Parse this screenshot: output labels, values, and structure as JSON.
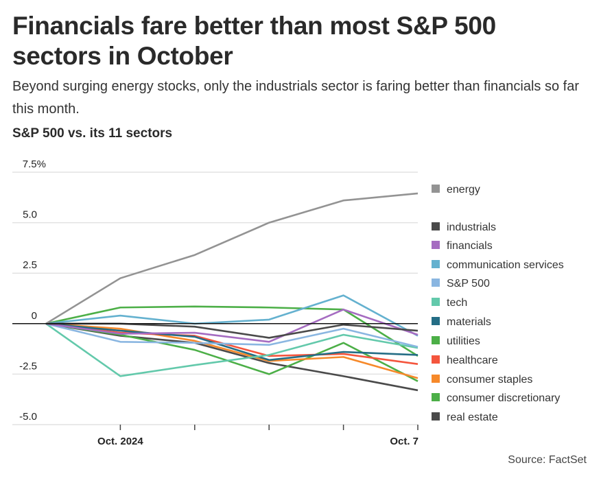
{
  "header": {
    "title": "Financials fare better than most S&P 500 sectors in October",
    "subtitle": "Beyond surging energy stocks, only the industrials sector is faring better than financials so far this month.",
    "chart_title": "S&P 500 vs. its 11 sectors"
  },
  "source": "Source: FactSet",
  "chart_data": {
    "type": "line",
    "title": "S&P 500 vs. its 11 sectors",
    "xlabel": "",
    "ylabel": "",
    "ylim": [
      -5.0,
      7.5
    ],
    "yticks": [
      {
        "value": 7.5,
        "label": "7.5%"
      },
      {
        "value": 5.0,
        "label": "5.0"
      },
      {
        "value": 2.5,
        "label": "2.5"
      },
      {
        "value": 0,
        "label": "0"
      },
      {
        "value": -2.5,
        "label": "-2.5"
      },
      {
        "value": -5.0,
        "label": "-5.0"
      }
    ],
    "x": [
      0,
      1,
      2,
      3,
      4,
      5
    ],
    "xticks": [
      {
        "index": 1,
        "label": "Oct. 2024"
      },
      {
        "index": 2,
        "label": ""
      },
      {
        "index": 3,
        "label": ""
      },
      {
        "index": 4,
        "label": ""
      },
      {
        "index": 5,
        "label": "Oct. 7"
      }
    ],
    "grid": true,
    "legend_position": "right",
    "series": [
      {
        "name": "energy",
        "color": "#939393",
        "values": [
          0,
          2.25,
          3.4,
          5.0,
          6.1,
          6.45
        ]
      },
      {
        "name": "industrials",
        "color": "#4a4a4a",
        "values": [
          0,
          0.0,
          -0.15,
          -0.7,
          -0.05,
          -0.35
        ]
      },
      {
        "name": "financials",
        "color": "#a56cc1",
        "values": [
          0,
          -0.5,
          -0.45,
          -0.9,
          0.7,
          -0.55
        ]
      },
      {
        "name": "communication services",
        "color": "#64b1cf",
        "values": [
          0,
          0.4,
          0.0,
          0.2,
          1.4,
          -0.6
        ]
      },
      {
        "name": "S&P 500",
        "color": "#8ab6e1",
        "values": [
          0,
          -0.9,
          -0.95,
          -1.05,
          -0.25,
          -1.15
        ]
      },
      {
        "name": "tech",
        "color": "#63c9ab",
        "values": [
          0,
          -2.6,
          -2.05,
          -1.55,
          -0.55,
          -1.2
        ]
      },
      {
        "name": "materials",
        "color": "#246d85",
        "values": [
          0,
          -0.35,
          -0.65,
          -1.8,
          -1.4,
          -1.55
        ]
      },
      {
        "name": "utilities",
        "color": "#4caf47",
        "values": [
          0,
          0.8,
          0.85,
          0.8,
          0.7,
          -1.6
        ]
      },
      {
        "name": "healthcare",
        "color": "#f4553d",
        "values": [
          0,
          -0.45,
          -0.6,
          -1.6,
          -1.5,
          -2.0
        ]
      },
      {
        "name": "consumer staples",
        "color": "#f6892a",
        "values": [
          0,
          -0.25,
          -0.85,
          -1.85,
          -1.65,
          -2.7
        ]
      },
      {
        "name": "consumer discretionary",
        "color": "#4caf47",
        "values": [
          0,
          -0.55,
          -1.3,
          -2.5,
          -0.95,
          -2.85
        ]
      },
      {
        "name": "real estate",
        "color": "#4a4a4a",
        "values": [
          0,
          -0.6,
          -0.95,
          -1.95,
          -2.6,
          -3.3
        ]
      }
    ],
    "legend_order": [
      "energy",
      "industrials",
      "financials",
      "communication services",
      "S&P 500",
      "tech",
      "materials",
      "utilities",
      "healthcare",
      "consumer staples",
      "consumer discretionary",
      "real estate"
    ]
  }
}
